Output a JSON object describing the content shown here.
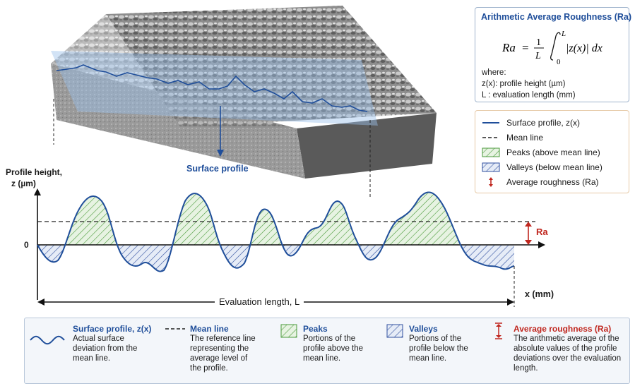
{
  "formula": {
    "title": "Arithmetic Average Roughness (Ra)",
    "lhs": "Ra",
    "eq": "=",
    "frac_num": "1",
    "frac_den": "L",
    "upper": "L",
    "lower": "0",
    "integrand": "|z(x)| dx",
    "where": "where:",
    "def1": "z(x): profile height (µm)",
    "def2": "L : evaluation length (mm)"
  },
  "legend": {
    "items": [
      {
        "label": "Surface profile, z(x)"
      },
      {
        "label": "Mean line"
      },
      {
        "label": "Peaks (above mean line)"
      },
      {
        "label": "Valleys (below mean line)"
      },
      {
        "label": "Average roughness (Ra)"
      }
    ]
  },
  "labels": {
    "surface_profile": "Surface profile",
    "y_axis_line1": "Profile height,",
    "y_axis_line2": "z (µm)",
    "zero": "0",
    "x_axis": "x (mm)",
    "eval_length": "Evaluation length, L",
    "ra": "Ra"
  },
  "bottom": {
    "items": [
      {
        "title": "Surface profile, z(x)",
        "lines": [
          "Actual surface",
          "deviation from the",
          "mean line."
        ]
      },
      {
        "title": "Mean line",
        "lines": [
          "The reference line",
          "representing the",
          "average level of",
          "the profile."
        ]
      },
      {
        "title": "Peaks",
        "lines": [
          "Portions of the",
          "profile above the",
          "mean line."
        ]
      },
      {
        "title": "Valleys",
        "lines": [
          "Portions of the",
          "profile below the",
          "mean line."
        ]
      },
      {
        "title": "Average roughness (Ra)",
        "lines": [
          "The arithmetic average of the",
          "absolute values of the profile",
          "deviations over the evaluation",
          "length."
        ]
      }
    ]
  },
  "colors": {
    "profile": "#1f4e9a",
    "peaks": "#4a9a3a",
    "valleys": "#2f4f9f",
    "ra": "#c0271f",
    "mean": "#222222"
  }
}
